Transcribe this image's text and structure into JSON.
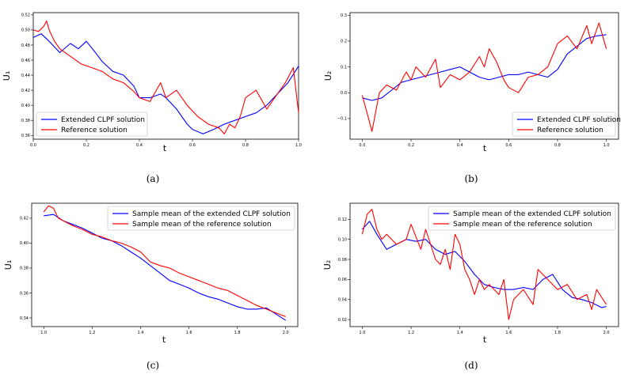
{
  "colors": {
    "ext": "#0000ff",
    "ref": "#ff0000",
    "axis": "#000000"
  },
  "chart_data": [
    {
      "type": "line",
      "caption": "(a)",
      "xlabel": "t",
      "ylabel": "U₁",
      "xlim": [
        0.0,
        1.0
      ],
      "ylim": [
        0.355,
        0.523
      ],
      "xticks": [
        "0.0",
        "0.2",
        "0.4",
        "0.6",
        "0.8",
        "1.0"
      ],
      "xtick_values": [
        0.0,
        0.2,
        0.4,
        0.6,
        0.8,
        1.0
      ],
      "yticks": [
        "0.36",
        "0.38",
        "0.40",
        "0.42",
        "0.44",
        "0.46",
        "0.48",
        "0.50",
        "0.52"
      ],
      "ytick_values": [
        0.36,
        0.38,
        0.4,
        0.42,
        0.44,
        0.46,
        0.48,
        0.5,
        0.52
      ],
      "legend_position": "lower-left",
      "series": [
        {
          "name": "Extended CLPF solution",
          "color": "blue",
          "x": [
            0.0,
            0.03,
            0.06,
            0.1,
            0.14,
            0.17,
            0.2,
            0.23,
            0.26,
            0.3,
            0.34,
            0.38,
            0.4,
            0.44,
            0.48,
            0.5,
            0.54,
            0.58,
            0.6,
            0.64,
            0.68,
            0.72,
            0.76,
            0.8,
            0.84,
            0.88,
            0.92,
            0.96,
            1.0
          ],
          "y": [
            0.49,
            0.495,
            0.485,
            0.47,
            0.482,
            0.475,
            0.485,
            0.472,
            0.458,
            0.445,
            0.44,
            0.425,
            0.41,
            0.41,
            0.415,
            0.41,
            0.395,
            0.375,
            0.368,
            0.362,
            0.368,
            0.375,
            0.38,
            0.385,
            0.39,
            0.4,
            0.415,
            0.43,
            0.452
          ]
        },
        {
          "name": "Reference solution",
          "color": "red",
          "x": [
            0.0,
            0.02,
            0.04,
            0.05,
            0.06,
            0.08,
            0.1,
            0.14,
            0.18,
            0.22,
            0.26,
            0.3,
            0.34,
            0.38,
            0.4,
            0.44,
            0.48,
            0.5,
            0.54,
            0.58,
            0.62,
            0.66,
            0.7,
            0.72,
            0.74,
            0.76,
            0.78,
            0.8,
            0.84,
            0.88,
            0.92,
            0.95,
            0.98,
            1.0
          ],
          "y": [
            0.5,
            0.498,
            0.505,
            0.512,
            0.5,
            0.485,
            0.475,
            0.465,
            0.455,
            0.45,
            0.445,
            0.435,
            0.43,
            0.418,
            0.41,
            0.405,
            0.43,
            0.41,
            0.42,
            0.4,
            0.385,
            0.375,
            0.37,
            0.362,
            0.375,
            0.37,
            0.385,
            0.41,
            0.42,
            0.395,
            0.415,
            0.43,
            0.45,
            0.39
          ]
        }
      ]
    },
    {
      "type": "line",
      "caption": "(b)",
      "xlabel": "t",
      "ylabel": "U₂",
      "xlim": [
        -0.05,
        1.05
      ],
      "ylim": [
        -0.18,
        0.31
      ],
      "xticks": [
        "0.0",
        "0.2",
        "0.4",
        "0.6",
        "0.8",
        "1.0"
      ],
      "xtick_values": [
        0.0,
        0.2,
        0.4,
        0.6,
        0.8,
        1.0
      ],
      "yticks": [
        "−0.1",
        "0.0",
        "0.1",
        "0.2",
        "0.3"
      ],
      "ytick_values": [
        -0.1,
        0.0,
        0.1,
        0.2,
        0.3
      ],
      "legend_position": "lower-right",
      "series": [
        {
          "name": "Extended CLPF solution",
          "color": "blue",
          "x": [
            0.0,
            0.04,
            0.08,
            0.12,
            0.16,
            0.2,
            0.24,
            0.28,
            0.32,
            0.36,
            0.4,
            0.44,
            0.48,
            0.52,
            0.56,
            0.6,
            0.64,
            0.68,
            0.72,
            0.76,
            0.8,
            0.84,
            0.88,
            0.92,
            0.96,
            1.0
          ],
          "y": [
            -0.02,
            -0.03,
            -0.02,
            0.01,
            0.04,
            0.05,
            0.06,
            0.07,
            0.08,
            0.09,
            0.1,
            0.08,
            0.06,
            0.05,
            0.06,
            0.07,
            0.07,
            0.08,
            0.07,
            0.06,
            0.09,
            0.15,
            0.18,
            0.21,
            0.22,
            0.225
          ]
        },
        {
          "name": "Reference solution",
          "color": "red",
          "x": [
            0.0,
            0.02,
            0.04,
            0.05,
            0.07,
            0.1,
            0.14,
            0.18,
            0.2,
            0.22,
            0.26,
            0.3,
            0.32,
            0.36,
            0.4,
            0.44,
            0.48,
            0.5,
            0.52,
            0.55,
            0.58,
            0.6,
            0.64,
            0.68,
            0.72,
            0.76,
            0.8,
            0.84,
            0.88,
            0.92,
            0.94,
            0.97,
            1.0
          ],
          "y": [
            -0.01,
            -0.08,
            -0.15,
            -0.1,
            0.0,
            0.03,
            0.01,
            0.08,
            0.05,
            0.1,
            0.06,
            0.13,
            0.02,
            0.07,
            0.05,
            0.08,
            0.14,
            0.1,
            0.17,
            0.12,
            0.05,
            0.02,
            0.0,
            0.06,
            0.07,
            0.1,
            0.19,
            0.22,
            0.17,
            0.26,
            0.19,
            0.27,
            0.17
          ]
        }
      ]
    },
    {
      "type": "line",
      "caption": "(c)",
      "xlabel": "t",
      "ylabel": "U₁",
      "xlim": [
        0.95,
        2.05
      ],
      "ylim": [
        0.333,
        0.432
      ],
      "xticks": [
        "1.0",
        "1.2",
        "1.4",
        "1.6",
        "1.8",
        "2.0"
      ],
      "xtick_values": [
        1.0,
        1.2,
        1.4,
        1.6,
        1.8,
        2.0
      ],
      "yticks": [
        "0.34",
        "0.36",
        "0.38",
        "0.40",
        "0.42"
      ],
      "ytick_values": [
        0.34,
        0.36,
        0.38,
        0.4,
        0.42
      ],
      "legend_position": "upper-right",
      "series": [
        {
          "name": "Sample mean of the extended CLPF solution",
          "color": "blue",
          "x": [
            1.0,
            1.04,
            1.08,
            1.12,
            1.16,
            1.2,
            1.24,
            1.28,
            1.32,
            1.36,
            1.4,
            1.44,
            1.48,
            1.52,
            1.56,
            1.6,
            1.64,
            1.68,
            1.72,
            1.76,
            1.8,
            1.84,
            1.88,
            1.92,
            1.96,
            2.0
          ],
          "y": [
            0.422,
            0.423,
            0.418,
            0.415,
            0.412,
            0.408,
            0.404,
            0.402,
            0.398,
            0.393,
            0.388,
            0.382,
            0.376,
            0.37,
            0.367,
            0.364,
            0.36,
            0.357,
            0.355,
            0.352,
            0.349,
            0.347,
            0.347,
            0.348,
            0.343,
            0.338
          ]
        },
        {
          "name": "Sample mean of the reference solution",
          "color": "red",
          "x": [
            1.0,
            1.02,
            1.04,
            1.06,
            1.08,
            1.12,
            1.16,
            1.2,
            1.24,
            1.28,
            1.32,
            1.36,
            1.4,
            1.44,
            1.48,
            1.52,
            1.56,
            1.6,
            1.64,
            1.68,
            1.72,
            1.76,
            1.8,
            1.84,
            1.88,
            1.92,
            1.96,
            2.0
          ],
          "y": [
            0.425,
            0.43,
            0.428,
            0.42,
            0.418,
            0.414,
            0.411,
            0.407,
            0.405,
            0.402,
            0.4,
            0.397,
            0.393,
            0.385,
            0.382,
            0.38,
            0.376,
            0.373,
            0.37,
            0.367,
            0.364,
            0.362,
            0.358,
            0.354,
            0.35,
            0.347,
            0.344,
            0.341
          ]
        }
      ]
    },
    {
      "type": "line",
      "caption": "(d)",
      "xlabel": "t",
      "ylabel": "U₂",
      "xlim": [
        0.95,
        2.05
      ],
      "ylim": [
        0.013,
        0.136
      ],
      "xticks": [
        "1.0",
        "1.2",
        "1.4",
        "1.6",
        "1.8",
        "2.0"
      ],
      "xtick_values": [
        1.0,
        1.2,
        1.4,
        1.6,
        1.8,
        2.0
      ],
      "yticks": [
        "0.02",
        "0.04",
        "0.06",
        "0.08",
        "0.10",
        "0.12"
      ],
      "ytick_values": [
        0.02,
        0.04,
        0.06,
        0.08,
        0.1,
        0.12
      ],
      "legend_position": "upper-right",
      "series": [
        {
          "name": "Sample mean of the extended CLPF solution",
          "color": "blue",
          "x": [
            1.0,
            1.03,
            1.06,
            1.1,
            1.14,
            1.18,
            1.22,
            1.26,
            1.3,
            1.34,
            1.38,
            1.42,
            1.46,
            1.5,
            1.54,
            1.58,
            1.62,
            1.66,
            1.7,
            1.74,
            1.78,
            1.82,
            1.86,
            1.9,
            1.94,
            1.98,
            2.0
          ],
          "y": [
            0.11,
            0.118,
            0.105,
            0.09,
            0.095,
            0.1,
            0.098,
            0.1,
            0.09,
            0.085,
            0.088,
            0.078,
            0.065,
            0.055,
            0.052,
            0.05,
            0.05,
            0.052,
            0.05,
            0.06,
            0.065,
            0.05,
            0.042,
            0.04,
            0.037,
            0.032,
            0.033
          ]
        },
        {
          "name": "Sample mean of the reference solution",
          "color": "red",
          "x": [
            1.0,
            1.02,
            1.04,
            1.06,
            1.08,
            1.1,
            1.14,
            1.18,
            1.2,
            1.24,
            1.26,
            1.3,
            1.32,
            1.34,
            1.36,
            1.38,
            1.4,
            1.42,
            1.44,
            1.46,
            1.48,
            1.5,
            1.52,
            1.56,
            1.58,
            1.6,
            1.62,
            1.66,
            1.7,
            1.72,
            1.76,
            1.8,
            1.84,
            1.88,
            1.92,
            1.94,
            1.96,
            2.0
          ],
          "y": [
            0.105,
            0.125,
            0.13,
            0.11,
            0.1,
            0.105,
            0.095,
            0.1,
            0.115,
            0.09,
            0.11,
            0.08,
            0.075,
            0.09,
            0.07,
            0.105,
            0.095,
            0.07,
            0.06,
            0.045,
            0.06,
            0.05,
            0.055,
            0.045,
            0.06,
            0.02,
            0.04,
            0.05,
            0.035,
            0.07,
            0.06,
            0.05,
            0.055,
            0.04,
            0.045,
            0.03,
            0.05,
            0.035
          ]
        }
      ]
    }
  ]
}
